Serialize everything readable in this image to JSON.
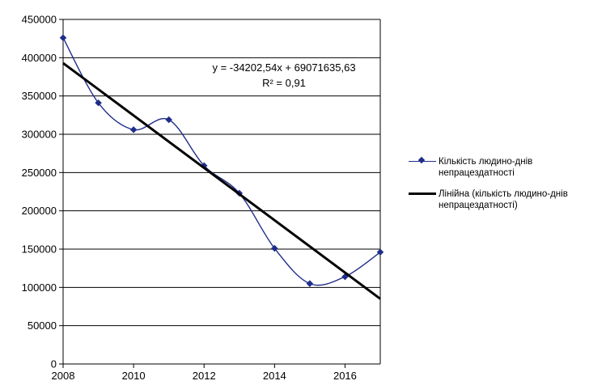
{
  "chart_data": {
    "type": "line",
    "title": "",
    "xlabel": "",
    "ylabel": "",
    "xlim": [
      2008,
      2017
    ],
    "ylim": [
      0,
      450000
    ],
    "x_ticks": [
      "2008",
      "2010",
      "2012",
      "2014",
      "2016"
    ],
    "x_tick_values": [
      2008,
      2010,
      2012,
      2014,
      2016
    ],
    "y_ticks": [
      "0",
      "50000",
      "100000",
      "150000",
      "200000",
      "250000",
      "300000",
      "350000",
      "400000",
      "450000"
    ],
    "y_tick_values": [
      0,
      50000,
      100000,
      150000,
      200000,
      250000,
      300000,
      350000,
      400000,
      450000
    ],
    "grid": "horizontal",
    "legend_position": "right",
    "series": [
      {
        "name": "Кількість людино-днів непрацездатності",
        "style": "smoothed line with diamond markers",
        "color": "#1f2d8a",
        "x": [
          2008,
          2009,
          2010,
          2011,
          2012,
          2013,
          2014,
          2015,
          2016,
          2017
        ],
        "values": [
          426000,
          341000,
          306000,
          319000,
          259000,
          223000,
          151000,
          105000,
          114000,
          146000
        ]
      },
      {
        "name": "Лінійна  (кількість людино-днів непрацездатності)",
        "style": "linear trendline",
        "color": "#000000",
        "slope": -34202.54,
        "intercept": 69071635.63,
        "x": [
          2008,
          2017
        ]
      }
    ],
    "annotations": {
      "equation": "y = -34202,54x + 69071635,63",
      "r_squared": "R² = 0,91"
    }
  }
}
